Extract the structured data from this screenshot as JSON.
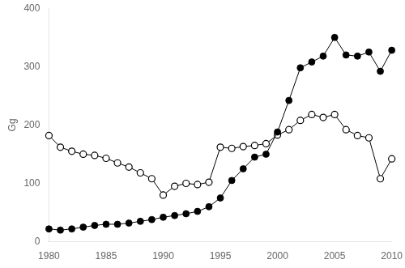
{
  "chart_data": {
    "type": "line",
    "y_label": "Gg",
    "x": [
      1980,
      1981,
      1982,
      1983,
      1984,
      1985,
      1986,
      1987,
      1988,
      1989,
      1990,
      1991,
      1992,
      1993,
      1994,
      1995,
      1996,
      1997,
      1998,
      1999,
      2000,
      2001,
      2002,
      2003,
      2004,
      2005,
      2006,
      2007,
      2008,
      2009,
      2010
    ],
    "series": [
      {
        "color": "#000000",
        "marker": "filled_circle",
        "values": [
          22,
          20,
          22,
          25,
          28,
          30,
          30,
          32,
          35,
          38,
          42,
          45,
          48,
          52,
          60,
          75,
          105,
          125,
          145,
          150,
          188,
          242,
          298,
          308,
          318,
          350,
          320,
          318,
          325,
          292,
          328
        ]
      },
      {
        "color": "#000000",
        "marker": "open_circle",
        "values": [
          182,
          162,
          155,
          150,
          148,
          143,
          135,
          128,
          118,
          108,
          80,
          95,
          100,
          98,
          102,
          162,
          160,
          163,
          165,
          168,
          183,
          192,
          208,
          218,
          213,
          218,
          192,
          182,
          178,
          108,
          142
        ]
      }
    ],
    "xlim": [
      1980,
      2010
    ],
    "xticks": [
      1980,
      1985,
      1990,
      1995,
      2000,
      2005,
      2010
    ],
    "ylim": [
      0,
      400
    ],
    "yticks": [
      0,
      100,
      200,
      300,
      400
    ],
    "grid": false
  }
}
